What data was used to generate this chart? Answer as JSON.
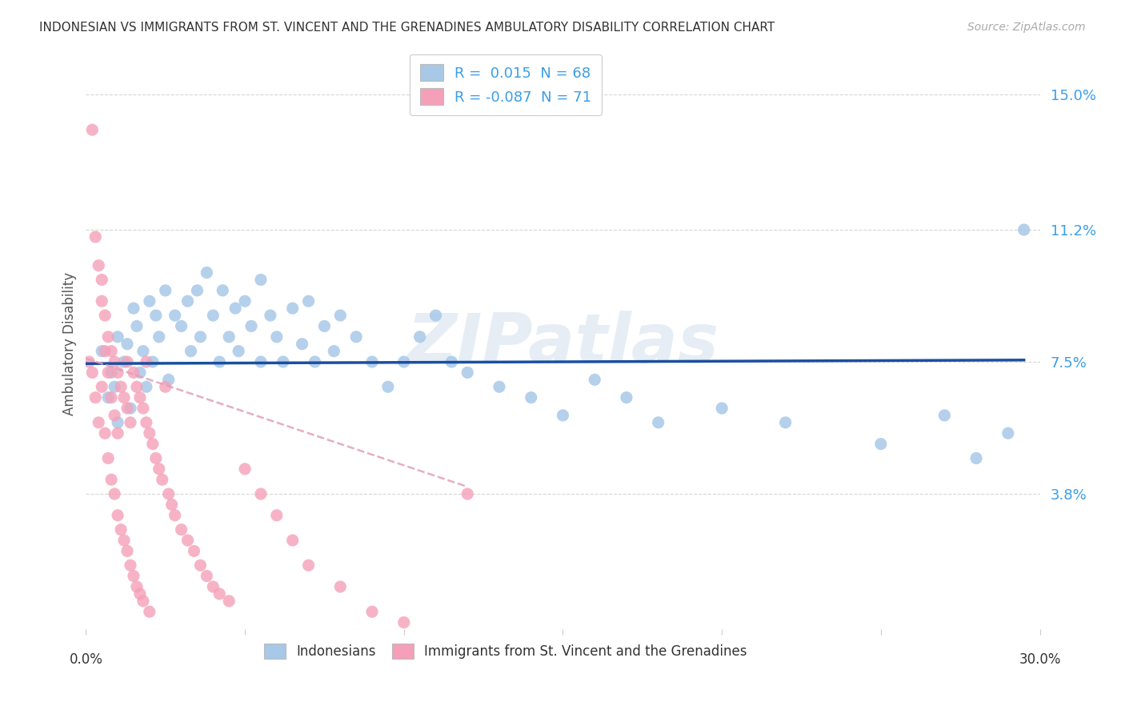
{
  "title": "INDONESIAN VS IMMIGRANTS FROM ST. VINCENT AND THE GRENADINES AMBULATORY DISABILITY CORRELATION CHART",
  "source": "Source: ZipAtlas.com",
  "ylabel": "Ambulatory Disability",
  "ytick_labels": [
    "3.8%",
    "7.5%",
    "11.2%",
    "15.0%"
  ],
  "ytick_values": [
    0.038,
    0.075,
    0.112,
    0.15
  ],
  "xlim": [
    0.0,
    0.3
  ],
  "ylim": [
    0.0,
    0.16
  ],
  "legend_r1": "R =  0.015  N = 68",
  "legend_r2": "R = -0.087  N = 71",
  "color_blue": "#a8c8e8",
  "color_pink": "#f5a0b8",
  "trendline_blue": "#1a4fa0",
  "trendline_pink": "#e0a0b8",
  "blue_scatter_x": [
    0.005,
    0.007,
    0.008,
    0.009,
    0.01,
    0.01,
    0.012,
    0.013,
    0.014,
    0.015,
    0.016,
    0.017,
    0.018,
    0.019,
    0.02,
    0.021,
    0.022,
    0.023,
    0.025,
    0.026,
    0.028,
    0.03,
    0.032,
    0.033,
    0.035,
    0.036,
    0.038,
    0.04,
    0.042,
    0.043,
    0.045,
    0.047,
    0.048,
    0.05,
    0.052,
    0.055,
    0.055,
    0.058,
    0.06,
    0.062,
    0.065,
    0.068,
    0.07,
    0.072,
    0.075,
    0.078,
    0.08,
    0.085,
    0.09,
    0.095,
    0.1,
    0.105,
    0.11,
    0.115,
    0.12,
    0.13,
    0.14,
    0.15,
    0.16,
    0.17,
    0.18,
    0.2,
    0.22,
    0.25,
    0.27,
    0.28,
    0.29,
    0.295
  ],
  "blue_scatter_y": [
    0.078,
    0.065,
    0.072,
    0.068,
    0.082,
    0.058,
    0.075,
    0.08,
    0.062,
    0.09,
    0.085,
    0.072,
    0.078,
    0.068,
    0.092,
    0.075,
    0.088,
    0.082,
    0.095,
    0.07,
    0.088,
    0.085,
    0.092,
    0.078,
    0.095,
    0.082,
    0.1,
    0.088,
    0.075,
    0.095,
    0.082,
    0.09,
    0.078,
    0.092,
    0.085,
    0.098,
    0.075,
    0.088,
    0.082,
    0.075,
    0.09,
    0.08,
    0.092,
    0.075,
    0.085,
    0.078,
    0.088,
    0.082,
    0.075,
    0.068,
    0.075,
    0.082,
    0.088,
    0.075,
    0.072,
    0.068,
    0.065,
    0.06,
    0.07,
    0.065,
    0.058,
    0.062,
    0.058,
    0.052,
    0.06,
    0.048,
    0.055,
    0.112
  ],
  "pink_scatter_x": [
    0.001,
    0.002,
    0.002,
    0.003,
    0.003,
    0.004,
    0.004,
    0.005,
    0.005,
    0.005,
    0.006,
    0.006,
    0.006,
    0.007,
    0.007,
    0.007,
    0.008,
    0.008,
    0.008,
    0.009,
    0.009,
    0.009,
    0.01,
    0.01,
    0.01,
    0.011,
    0.011,
    0.012,
    0.012,
    0.013,
    0.013,
    0.013,
    0.014,
    0.014,
    0.015,
    0.015,
    0.016,
    0.016,
    0.017,
    0.017,
    0.018,
    0.018,
    0.019,
    0.019,
    0.02,
    0.02,
    0.021,
    0.022,
    0.023,
    0.024,
    0.025,
    0.026,
    0.027,
    0.028,
    0.03,
    0.032,
    0.034,
    0.036,
    0.038,
    0.04,
    0.042,
    0.045,
    0.05,
    0.055,
    0.06,
    0.065,
    0.07,
    0.08,
    0.09,
    0.1,
    0.12
  ],
  "pink_scatter_y": [
    0.075,
    0.14,
    0.072,
    0.11,
    0.065,
    0.102,
    0.058,
    0.098,
    0.092,
    0.068,
    0.088,
    0.078,
    0.055,
    0.082,
    0.072,
    0.048,
    0.078,
    0.065,
    0.042,
    0.075,
    0.06,
    0.038,
    0.072,
    0.055,
    0.032,
    0.068,
    0.028,
    0.065,
    0.025,
    0.062,
    0.022,
    0.075,
    0.058,
    0.018,
    0.072,
    0.015,
    0.068,
    0.012,
    0.065,
    0.01,
    0.062,
    0.008,
    0.058,
    0.075,
    0.055,
    0.005,
    0.052,
    0.048,
    0.045,
    0.042,
    0.068,
    0.038,
    0.035,
    0.032,
    0.028,
    0.025,
    0.022,
    0.018,
    0.015,
    0.012,
    0.01,
    0.008,
    0.045,
    0.038,
    0.032,
    0.025,
    0.018,
    0.012,
    0.005,
    0.002,
    0.038
  ],
  "blue_trend_x": [
    0.0,
    0.295
  ],
  "blue_trend_y": [
    0.0745,
    0.0755
  ],
  "pink_trend_x": [
    0.0,
    0.12
  ],
  "pink_trend_y": [
    0.076,
    0.04
  ],
  "watermark": "ZIPatlas",
  "bottom_legend_blue": "Indonesians",
  "bottom_legend_pink": "Immigrants from St. Vincent and the Grenadines"
}
